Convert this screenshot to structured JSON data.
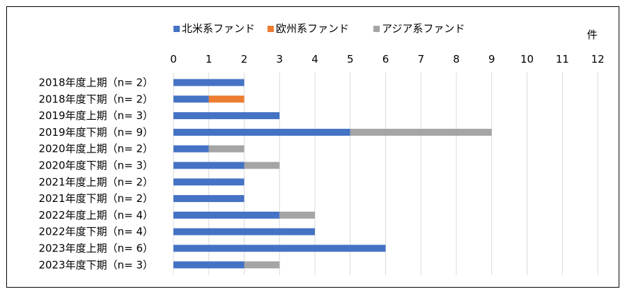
{
  "chart_data": {
    "type": "bar",
    "orientation": "horizontal",
    "stacked": true,
    "unit_label": "件",
    "xlim": [
      0,
      12
    ],
    "ticks": [
      0,
      1,
      2,
      3,
      4,
      5,
      6,
      7,
      8,
      9,
      10,
      11,
      12
    ],
    "grid": true,
    "legend_position": "top",
    "categories": [
      "2018年度上期（n=  2）",
      "2018年度下期（n=  2）",
      "2019年度上期（n=  3）",
      "2019年度下期（n=  9）",
      "2020年度上期（n=  2）",
      "2020年度下期（n=  3）",
      "2021年度上期（n=  2）",
      "2021年度下期（n=  2）",
      "2022年度上期（n=  4）",
      "2022年度下期（n=  4）",
      "2023年度上期（n=  6）",
      "2023年度下期（n=  3）"
    ],
    "series": [
      {
        "name": "北米系ファンド",
        "color": "#4472C4",
        "values": [
          2,
          1,
          3,
          5,
          1,
          2,
          2,
          2,
          3,
          4,
          6,
          2
        ]
      },
      {
        "name": "欧州系ファンド",
        "color": "#ED7D31",
        "values": [
          0,
          1,
          0,
          0,
          0,
          0,
          0,
          0,
          0,
          0,
          0,
          0
        ]
      },
      {
        "name": "アジア系ファンド",
        "color": "#A5A5A5",
        "values": [
          0,
          0,
          0,
          4,
          1,
          1,
          0,
          0,
          1,
          0,
          0,
          1
        ]
      }
    ]
  }
}
